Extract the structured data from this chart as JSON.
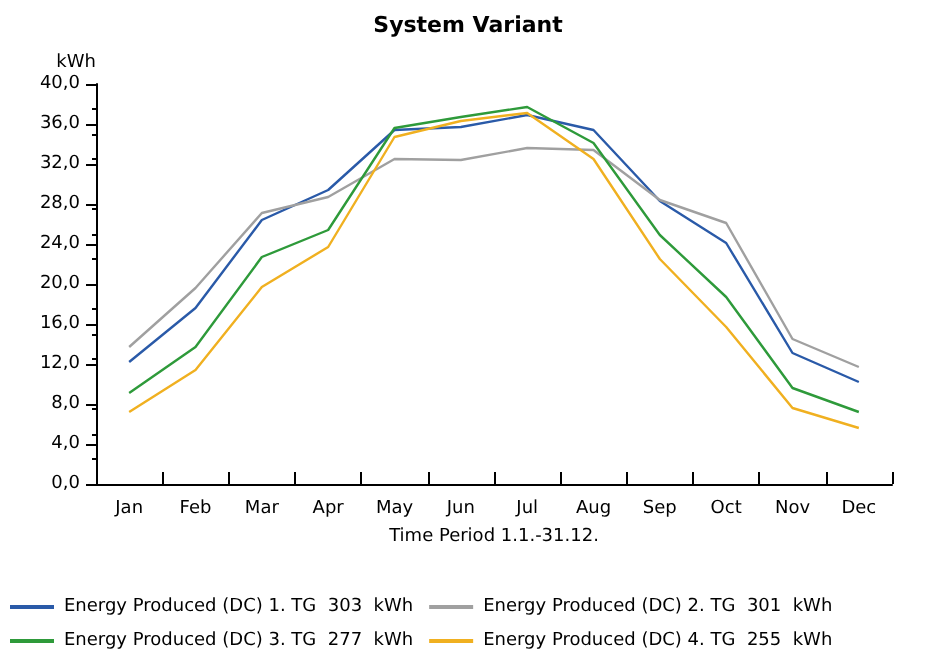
{
  "chart_data": {
    "type": "line",
    "title": "System Variant",
    "ylabel": "kWh",
    "xlabel": "Time Period 1.1.-31.12.",
    "categories": [
      "Jan",
      "Feb",
      "Mar",
      "Apr",
      "May",
      "Jun",
      "Jul",
      "Aug",
      "Sep",
      "Oct",
      "Nov",
      "Dec"
    ],
    "series": [
      {
        "name": "Energy Produced (DC) 1. TG  303  kWh",
        "color": "#2a5aa8",
        "values": [
          12.2,
          17.6,
          26.4,
          29.4,
          35.4,
          35.7,
          36.9,
          35.4,
          28.3,
          24.1,
          13.1,
          10.2
        ]
      },
      {
        "name": "Energy Produced (DC) 2. TG  301  kWh",
        "color": "#a0a0a0",
        "values": [
          13.7,
          19.6,
          27.1,
          28.7,
          32.5,
          32.4,
          33.6,
          33.4,
          28.4,
          26.1,
          14.5,
          11.7
        ]
      },
      {
        "name": "Energy Produced (DC) 3. TG  277  kWh",
        "color": "#2e9a3a",
        "values": [
          9.1,
          13.7,
          22.7,
          25.4,
          35.6,
          36.7,
          37.7,
          34.1,
          24.9,
          18.7,
          9.6,
          7.2
        ]
      },
      {
        "name": "Energy Produced (DC) 4. TG  255  kWh",
        "color": "#f0b020",
        "values": [
          7.2,
          11.4,
          19.7,
          23.7,
          34.7,
          36.3,
          37.1,
          32.5,
          22.5,
          15.7,
          7.6,
          5.6
        ]
      }
    ],
    "ylim": [
      0,
      40
    ],
    "yticks": [
      {
        "value": 0,
        "label": "0,0"
      },
      {
        "value": 4,
        "label": "4,0"
      },
      {
        "value": 8,
        "label": "8,0"
      },
      {
        "value": 12,
        "label": "12,0"
      },
      {
        "value": 16,
        "label": "16,0"
      },
      {
        "value": 20,
        "label": "20,0"
      },
      {
        "value": 24,
        "label": "24,0"
      },
      {
        "value": 28,
        "label": "28,0"
      },
      {
        "value": 32,
        "label": "32,0"
      },
      {
        "value": 36,
        "label": "36,0"
      },
      {
        "value": 40,
        "label": "40,0"
      }
    ],
    "grid": false,
    "legend": "bottom",
    "marker": "none",
    "line_style": "solid"
  }
}
